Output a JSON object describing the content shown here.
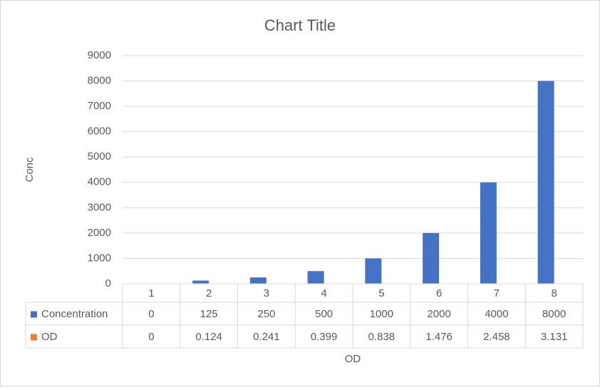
{
  "chart_data": {
    "type": "bar",
    "title": "Chart Title",
    "x_label": "OD",
    "y_label": "Conc",
    "categories": [
      1,
      2,
      3,
      4,
      5,
      6,
      7,
      8
    ],
    "series": [
      {
        "name": "Concentration",
        "color": "#4472c4",
        "values": [
          0,
          125,
          250,
          500,
          1000,
          2000,
          4000,
          8000
        ]
      },
      {
        "name": "OD",
        "color": "#ed7d31",
        "values": [
          0,
          0.124,
          0.241,
          0.399,
          0.838,
          1.476,
          2.458,
          3.131
        ]
      }
    ],
    "ylim": [
      0,
      9000
    ],
    "yticks": [
      0,
      1000,
      2000,
      3000,
      4000,
      5000,
      6000,
      7000,
      8000,
      9000
    ],
    "grid": true,
    "data_table": true
  }
}
